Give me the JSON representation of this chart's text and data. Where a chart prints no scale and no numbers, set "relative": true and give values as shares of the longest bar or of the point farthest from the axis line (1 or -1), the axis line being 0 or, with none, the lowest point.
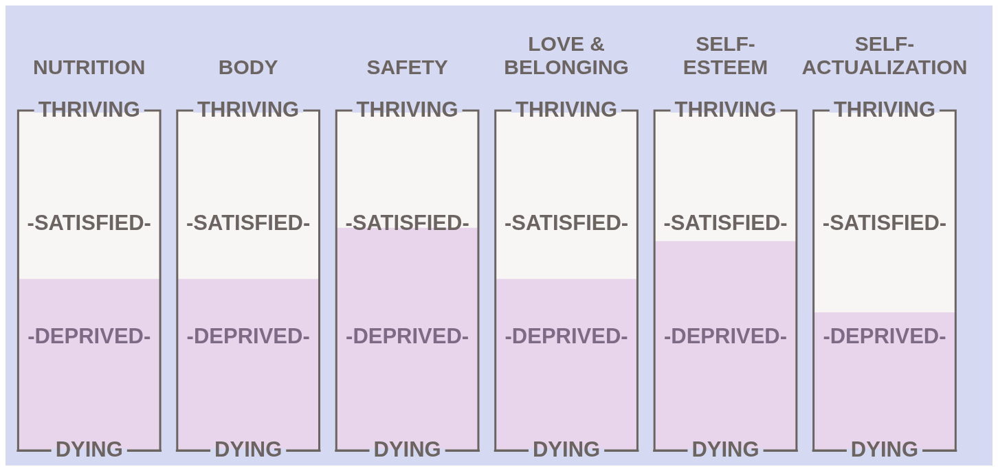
{
  "chart_data": {
    "type": "bar",
    "relative": true,
    "categories": [
      "NUTRITION",
      "BODY",
      "SAFETY",
      "LOVE & BELONGING",
      "SELF-ESTEEM",
      "SELF-ACTUALIZATION"
    ],
    "values": [
      0.77,
      0.77,
      1,
      0.77,
      0.94,
      0.62
    ],
    "color": "#e8d5ec",
    "annotations": [
      "THRIVING",
      "-SATISFIED-",
      "-DEPRIVED-",
      "DYING"
    ]
  }
}
